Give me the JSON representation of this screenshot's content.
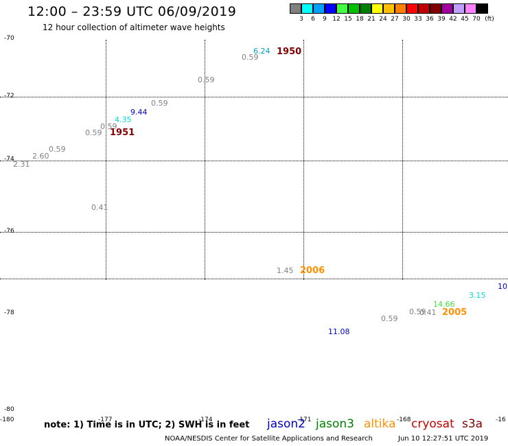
{
  "title": "12:00 – 23:59 UTC 06/09/2019",
  "subtitle": "12 hour collection of altimeter wave heights",
  "legend": {
    "unit": "(ft)",
    "items": [
      {
        "value": "3",
        "color": "#808080"
      },
      {
        "value": "6",
        "color": "#00ffff"
      },
      {
        "value": "9",
        "color": "#00a0ff"
      },
      {
        "value": "12",
        "color": "#0000ff"
      },
      {
        "value": "15",
        "color": "#40ff40"
      },
      {
        "value": "18",
        "color": "#00c000"
      },
      {
        "value": "21",
        "color": "#008000"
      },
      {
        "value": "24",
        "color": "#ffff00"
      },
      {
        "value": "27",
        "color": "#ffc000"
      },
      {
        "value": "30",
        "color": "#ff8000"
      },
      {
        "value": "33",
        "color": "#ff0000"
      },
      {
        "value": "36",
        "color": "#c00000"
      },
      {
        "value": "39",
        "color": "#800000"
      },
      {
        "value": "42",
        "color": "#a000a0"
      },
      {
        "value": "45",
        "color": "#c0a0ff"
      },
      {
        "value": "70",
        "color": "#ff80ff"
      },
      {
        "value": "",
        "color": "#000000"
      }
    ]
  },
  "lat_labels": [
    "-70",
    "-72",
    "-74",
    "-76",
    "-78",
    "-80"
  ],
  "lon_labels": [
    "-180",
    "-177",
    "-174",
    "-171",
    "-168",
    "-16"
  ],
  "observations": [
    {
      "label": "6.24",
      "color": "#00a0c0"
    },
    {
      "label": "0.59",
      "color": "#808080"
    },
    {
      "label": "0.59",
      "color": "#808080"
    },
    {
      "label": "0.59",
      "color": "#808080"
    },
    {
      "label": "9.44",
      "color": "#0000c0"
    },
    {
      "label": "4.35",
      "color": "#00d8d8"
    },
    {
      "label": "0.59",
      "color": "#808080"
    },
    {
      "label": "0.59",
      "color": "#808080"
    },
    {
      "label": "0.59",
      "color": "#808080"
    },
    {
      "label": "2.60",
      "color": "#808080"
    },
    {
      "label": "2.31",
      "color": "#808080"
    },
    {
      "label": "0.41",
      "color": "#808080"
    },
    {
      "label": "1.45",
      "color": "#808080"
    },
    {
      "label": "10.",
      "color": "#0000c0"
    },
    {
      "label": "3.15",
      "color": "#00d8d8"
    },
    {
      "label": "14.66",
      "color": "#40e040"
    },
    {
      "label": "0.59",
      "color": "#808080"
    },
    {
      "label": "0.41",
      "color": "#808080"
    },
    {
      "label": "0.59",
      "color": "#808080"
    },
    {
      "label": "11.08",
      "color": "#0000c0"
    }
  ],
  "passes": [
    {
      "label": "1950",
      "color": "#800000"
    },
    {
      "label": "1951",
      "color": "#800000"
    },
    {
      "label": "2006",
      "color": "#ff9000"
    },
    {
      "label": "2005",
      "color": "#ff9000"
    }
  ],
  "note": "note:  1) Time is in UTC;  2) SWH is in feet",
  "satellites": [
    {
      "label": "jason2",
      "color": "#0000c0"
    },
    {
      "label": "jason3",
      "color": "#008000"
    },
    {
      "label": "altika",
      "color": "#ff9000"
    },
    {
      "label": "cryosat",
      "color": "#c00000"
    },
    {
      "label": "s3a",
      "color": "#800000"
    }
  ],
  "credit": "NOAA/NESDIS Center for Satellite Applications and Research",
  "timestamp": "Jun 10 12:27:51 UTC 2019"
}
